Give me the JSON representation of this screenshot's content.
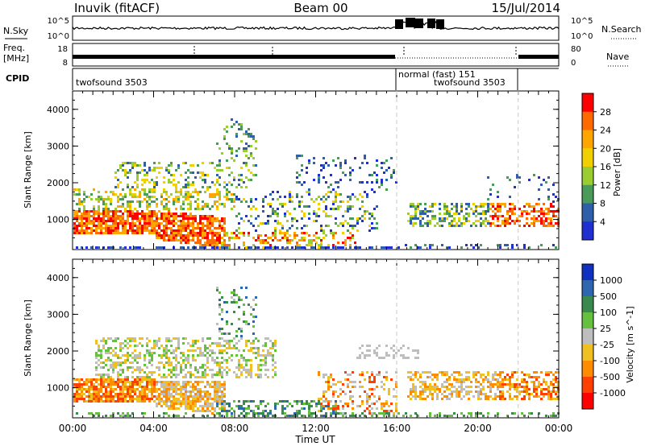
{
  "header": {
    "station": "Inuvik (fitACF)",
    "beam": "Beam 00",
    "date": "15/Jul/2014"
  },
  "noise_panel": {
    "left_label": "N.Sky",
    "right_label": "N.Search",
    "ticks_left": [
      "10^5",
      "10^0"
    ],
    "ticks_right": [
      "10^5",
      "10^0"
    ]
  },
  "freq_panel": {
    "left_label_1": "Freq.",
    "left_label_2": "[MHz]",
    "right_label": "Nave",
    "ticks_left": [
      "18",
      "8"
    ],
    "ticks_right": [
      "80",
      "0"
    ]
  },
  "cpid_panel": {
    "label": "CPID",
    "modes": [
      {
        "name": "twofsound 3503",
        "start_hour": 0,
        "end_hour": 16
      },
      {
        "name": "normal (fast) 151",
        "start_hour": 16,
        "end_hour": 22
      },
      {
        "name": "twofsound 3503",
        "start_hour": 16,
        "end_hour": 22
      }
    ]
  },
  "chart_data": [
    {
      "type": "heatmap",
      "quantity": "power",
      "ylabel": "Slant Range [km]",
      "xlim_hours": [
        0,
        24
      ],
      "ylim": [
        180,
        4500
      ],
      "yticks": [
        1000,
        2000,
        3000,
        4000
      ],
      "colorbar_label": "Power [dB]",
      "colorbar_ticks": [
        "28",
        "24",
        "20",
        "16",
        "12",
        "8",
        "4"
      ],
      "colorbar_colors": [
        "#ff0000",
        "#ff6a00",
        "#ffa500",
        "#f0d000",
        "#9acd32",
        "#4a9a5a",
        "#2e5fa8",
        "#1f2fd0"
      ]
    },
    {
      "type": "heatmap",
      "quantity": "velocity",
      "ylabel": "Slant Range [km]",
      "xlabel": "Time UT",
      "xlim_hours": [
        0,
        24
      ],
      "ylim": [
        180,
        4500
      ],
      "yticks": [
        1000,
        2000,
        3000,
        4000
      ],
      "xticks": [
        "00:00",
        "04:00",
        "08:00",
        "12:00",
        "16:00",
        "20:00",
        "00:00"
      ],
      "colorbar_label": "Velocity [m s^-1]",
      "colorbar_ticks": [
        "1000",
        "500",
        "100",
        "25",
        "-25",
        "-100",
        "-500",
        "-1000"
      ],
      "colorbar_colors": [
        "#1030c0",
        "#2e66b0",
        "#3a8a50",
        "#66c040",
        "#bebebe",
        "#f0c020",
        "#ff8c00",
        "#ff4000",
        "#ff0000"
      ]
    }
  ],
  "palette": {
    "power": [
      "#1f2fd0",
      "#2e5fa8",
      "#4a9a5a",
      "#9acd32",
      "#f0d000",
      "#ffa500",
      "#ff6a00",
      "#ff0000"
    ],
    "velocity": [
      "#ff0000",
      "#ff4000",
      "#ff8c00",
      "#f0c020",
      "#bebebe",
      "#66c040",
      "#3a8a50",
      "#2e66b0",
      "#1030c0"
    ]
  }
}
